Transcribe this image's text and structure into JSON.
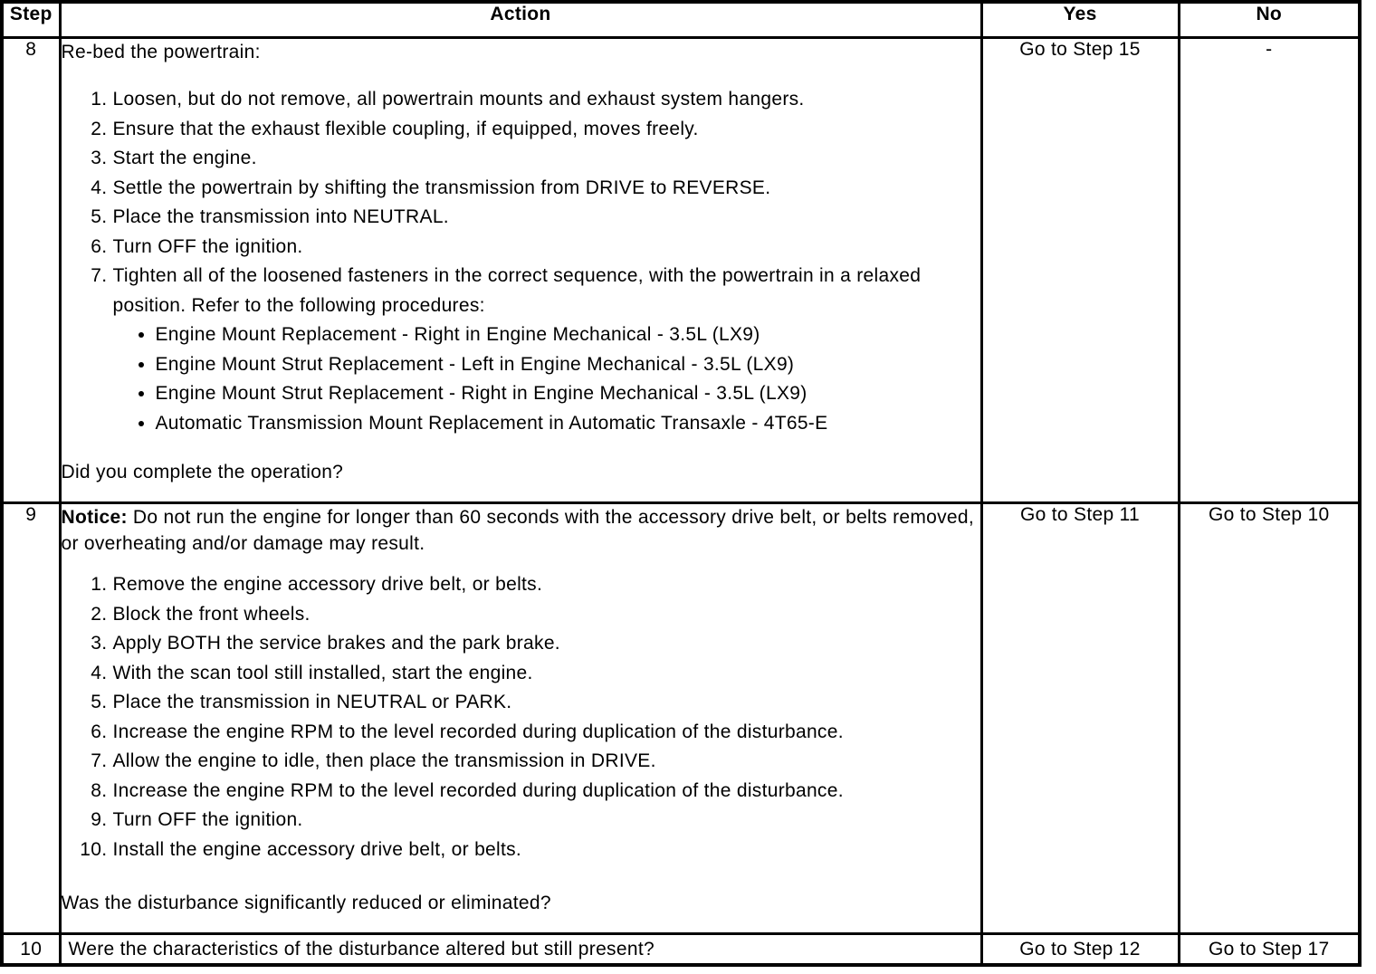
{
  "colors": {
    "border": "#000000",
    "text": "#000000",
    "background": "#ffffff"
  },
  "table": {
    "headers": {
      "step": "Step",
      "action": "Action",
      "yes": "Yes",
      "no": "No"
    },
    "rows": [
      {
        "step": "8",
        "intro": "Re-bed the powertrain:",
        "steps": [
          "Loosen, but do not remove, all powertrain mounts and exhaust system hangers.",
          "Ensure that the exhaust flexible coupling, if equipped, moves freely.",
          "Start the engine.",
          "Settle the powertrain by shifting the transmission from DRIVE to REVERSE.",
          "Place the transmission into NEUTRAL.",
          "Turn OFF the ignition.",
          "Tighten all of the loosened fasteners in the correct sequence, with the powertrain in a relaxed position. Refer to the following procedures:"
        ],
        "procedures": [
          "Engine Mount Replacement - Right in Engine Mechanical - 3.5L (LX9)",
          "Engine Mount Strut Replacement - Left in Engine Mechanical - 3.5L (LX9)",
          "Engine Mount Strut Replacement - Right in Engine Mechanical - 3.5L (LX9)",
          "Automatic Transmission Mount Replacement in Automatic Transaxle - 4T65-E"
        ],
        "question": "Did you complete the operation?",
        "yes": "Go to Step 15",
        "no": "-"
      },
      {
        "step": "9",
        "notice_label": "Notice:",
        "notice_text": " Do not run the engine for longer than 60 seconds with the accessory drive belt, or belts removed, or overheating and/or damage may result.",
        "steps": [
          "Remove the engine accessory drive belt, or belts.",
          "Block the front wheels.",
          "Apply BOTH the service brakes and the park brake.",
          "With the scan tool still installed, start the engine.",
          "Place the transmission in NEUTRAL or PARK.",
          "Increase the engine RPM to the level recorded during duplication of the disturbance.",
          "Allow the engine to idle, then place the transmission in DRIVE.",
          "Increase the engine RPM to the level recorded during duplication of the disturbance.",
          "Turn OFF the ignition.",
          "Install the engine accessory drive belt, or belts."
        ],
        "question": "Was the disturbance significantly reduced or eliminated?",
        "yes": "Go to Step 11",
        "no": "Go to Step 10"
      },
      {
        "step": "10",
        "question": "Were the characteristics of the disturbance altered but still present?",
        "yes": "Go to Step 12",
        "no": "Go to Step 17"
      }
    ]
  }
}
